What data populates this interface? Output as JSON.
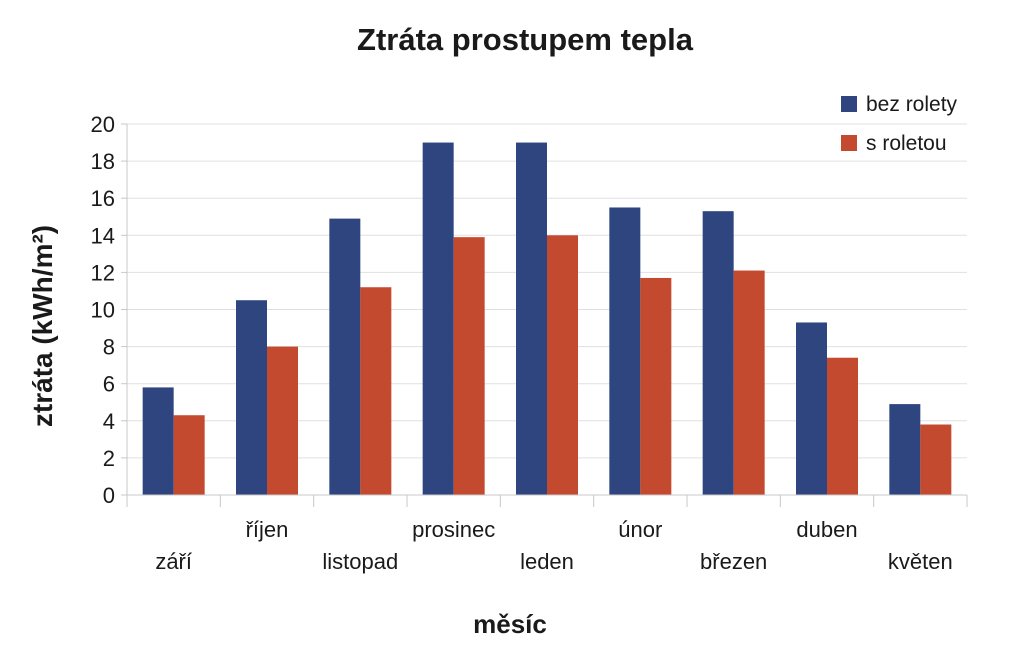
{
  "chart_data": {
    "type": "bar",
    "title": "Ztráta prostupem tepla",
    "xlabel": "měsíc",
    "ylabel": "ztráta (kWh/m²)",
    "ylim": [
      0,
      20
    ],
    "yticks": [
      0,
      2,
      4,
      6,
      8,
      10,
      12,
      14,
      16,
      18,
      20
    ],
    "grid": true,
    "legend_position": "top-right",
    "categories": [
      "září",
      "říjen",
      "listopad",
      "prosinec",
      "leden",
      "únor",
      "březen",
      "duben",
      "květen"
    ],
    "series": [
      {
        "name": "bez rolety",
        "color": "#2e4580",
        "values": [
          5.8,
          10.5,
          14.9,
          19.0,
          19.0,
          15.5,
          15.3,
          9.3,
          4.9
        ]
      },
      {
        "name": "s roletou",
        "color": "#c34a2e",
        "values": [
          4.3,
          8.0,
          11.2,
          13.9,
          14.0,
          11.7,
          12.1,
          7.4,
          3.8
        ]
      }
    ]
  }
}
